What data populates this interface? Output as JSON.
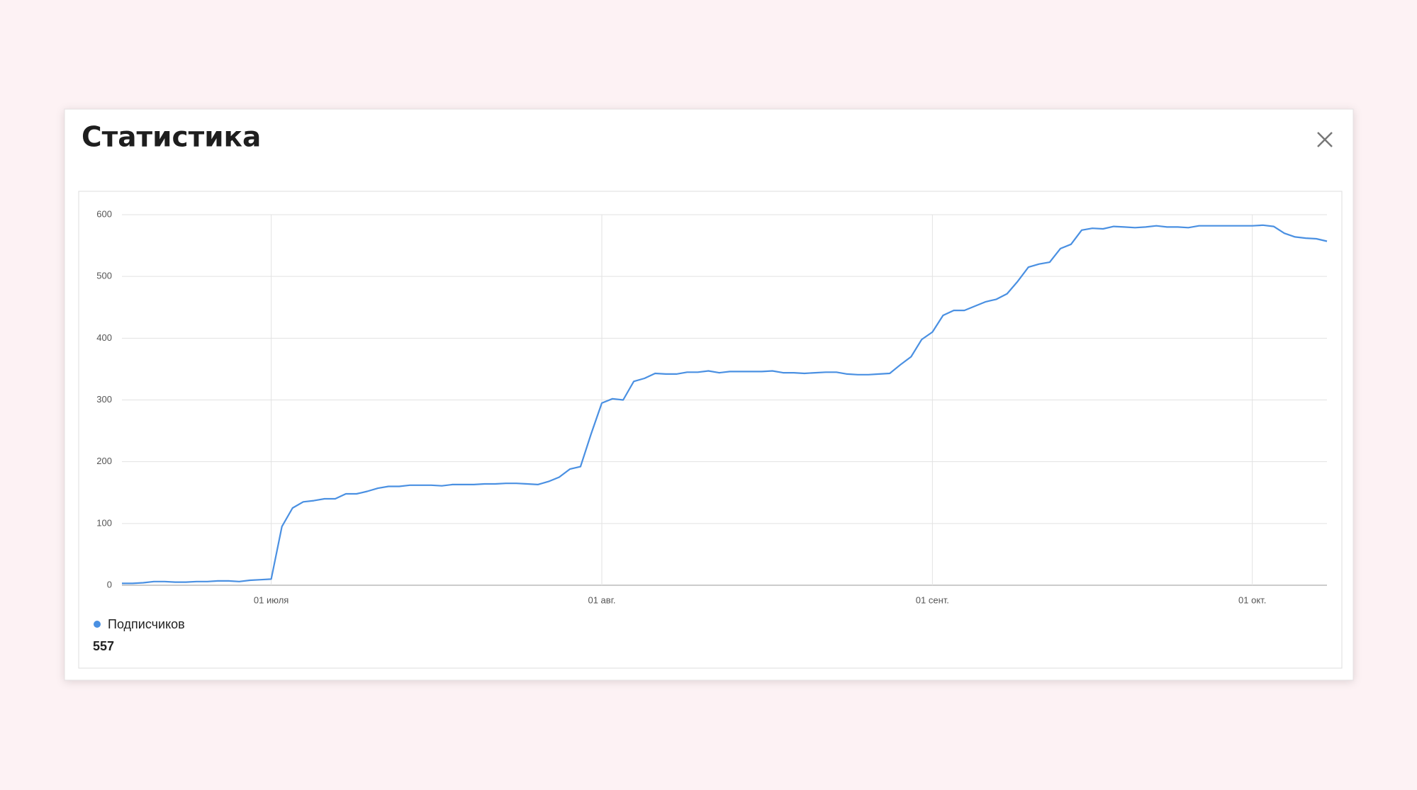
{
  "dialog": {
    "title": "Статистика"
  },
  "chart_data": {
    "type": "line",
    "x": [
      "06-17",
      "06-18",
      "06-19",
      "06-20",
      "06-21",
      "06-22",
      "06-23",
      "06-24",
      "06-25",
      "06-26",
      "06-27",
      "06-28",
      "06-29",
      "06-30",
      "07-01",
      "07-02",
      "07-03",
      "07-04",
      "07-05",
      "07-06",
      "07-07",
      "07-08",
      "07-09",
      "07-10",
      "07-11",
      "07-12",
      "07-13",
      "07-14",
      "07-15",
      "07-16",
      "07-17",
      "07-18",
      "07-19",
      "07-20",
      "07-21",
      "07-22",
      "07-23",
      "07-24",
      "07-25",
      "07-26",
      "07-27",
      "07-28",
      "07-29",
      "07-30",
      "07-31",
      "08-01",
      "08-02",
      "08-03",
      "08-04",
      "08-05",
      "08-06",
      "08-07",
      "08-08",
      "08-09",
      "08-10",
      "08-11",
      "08-12",
      "08-13",
      "08-14",
      "08-15",
      "08-16",
      "08-17",
      "08-18",
      "08-19",
      "08-20",
      "08-21",
      "08-22",
      "08-23",
      "08-24",
      "08-25",
      "08-26",
      "08-27",
      "08-28",
      "08-29",
      "08-30",
      "08-31",
      "09-01",
      "09-02",
      "09-03",
      "09-04",
      "09-05",
      "09-06",
      "09-07",
      "09-08",
      "09-09",
      "09-10",
      "09-11",
      "09-12",
      "09-13",
      "09-14",
      "09-15",
      "09-16",
      "09-17",
      "09-18",
      "09-19",
      "09-20",
      "09-21",
      "09-22",
      "09-23",
      "09-24",
      "09-25",
      "09-26",
      "09-27",
      "09-28",
      "09-29",
      "09-30",
      "10-01",
      "10-02",
      "10-03",
      "10-04",
      "10-05",
      "10-06",
      "10-07",
      "10-08"
    ],
    "series": [
      {
        "name": "Подписчиков",
        "color": "#4a90e2",
        "values": [
          3,
          3,
          4,
          6,
          6,
          5,
          5,
          6,
          6,
          7,
          7,
          6,
          8,
          9,
          10,
          95,
          125,
          135,
          137,
          140,
          140,
          148,
          148,
          152,
          157,
          160,
          160,
          162,
          162,
          162,
          161,
          163,
          163,
          163,
          164,
          164,
          165,
          165,
          164,
          163,
          168,
          175,
          188,
          192,
          245,
          295,
          302,
          300,
          330,
          335,
          343,
          342,
          342,
          345,
          345,
          347,
          344,
          346,
          346,
          346,
          346,
          347,
          344,
          344,
          343,
          344,
          345,
          345,
          342,
          341,
          341,
          342,
          343,
          357,
          370,
          398,
          410,
          437,
          445,
          445,
          452,
          459,
          463,
          472,
          492,
          515,
          520,
          523,
          545,
          552,
          575,
          578,
          577,
          581,
          580,
          579,
          580,
          582,
          580,
          580,
          579,
          582,
          582,
          582,
          582,
          582,
          582,
          583,
          581,
          570,
          564,
          562,
          561,
          557
        ]
      }
    ],
    "current": 557,
    "xlim": [
      "06-17",
      "10-08"
    ],
    "xticks": [
      {
        "value": "07-01",
        "label": "01 июля"
      },
      {
        "value": "08-01",
        "label": "01 авг."
      },
      {
        "value": "09-01",
        "label": "01 сент."
      },
      {
        "value": "10-01",
        "label": "01 окт."
      }
    ],
    "ylim": [
      0,
      600
    ],
    "yticks": [
      0,
      100,
      200,
      300,
      400,
      500,
      600
    ],
    "grid": true
  }
}
